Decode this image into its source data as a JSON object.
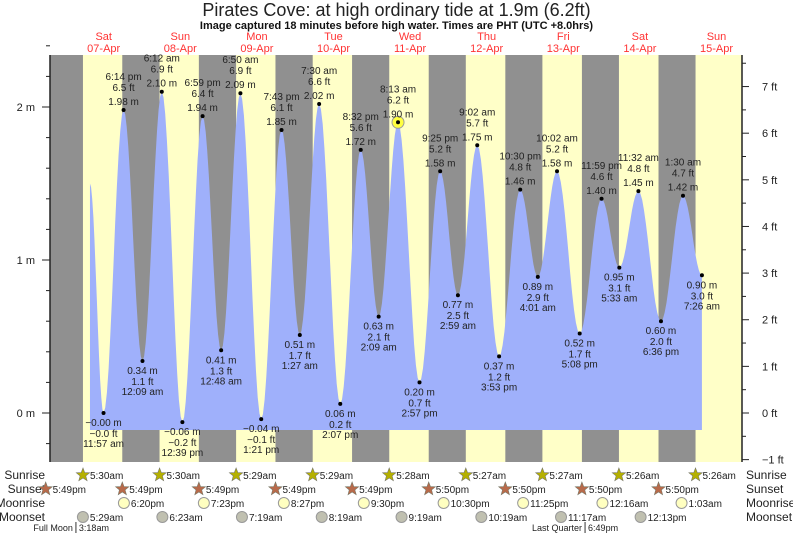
{
  "title": "Pirates Cove: at high  ordinary tide at 1.9m (6.2ft)",
  "subtitle": "Image captured 18 minutes before high water. Times are PHT (UTC +8.0hrs)",
  "colors": {
    "night": "#909090",
    "day": "#ffffc8",
    "water": "#9fb0fb",
    "day_label": "#ff3333",
    "sunrise": "#b5b000",
    "sunset": "#b86a4a",
    "moonrise": "#ffffc0",
    "moonset": "#c0c0b0"
  },
  "chart_data": {
    "type": "area",
    "title": "Pirates Cove: at high  ordinary tide at 1.9m (6.2ft)",
    "days": [
      {
        "dow": "Sat",
        "date": "07-Apr"
      },
      {
        "dow": "Sun",
        "date": "08-Apr"
      },
      {
        "dow": "Mon",
        "date": "09-Apr"
      },
      {
        "dow": "Tue",
        "date": "10-Apr"
      },
      {
        "dow": "Wed",
        "date": "11-Apr"
      },
      {
        "dow": "Thu",
        "date": "12-Apr"
      },
      {
        "dow": "Fri",
        "date": "13-Apr"
      },
      {
        "dow": "Sat",
        "date": "14-Apr"
      },
      {
        "dow": "Sun",
        "date": "15-Apr"
      }
    ],
    "y_left": {
      "unit": "m",
      "ticks": [
        "0 m",
        "1 m",
        "2 m"
      ],
      "range": [
        -0.15,
        2.6
      ]
    },
    "y_right": {
      "unit": "ft",
      "ticks": [
        "−1 ft",
        "0 ft",
        "1 ft",
        "2 ft",
        "3 ft",
        "4 ft",
        "5 ft",
        "6 ft",
        "7 ft"
      ]
    },
    "curve_start": {
      "day": 0,
      "hour": 7.7,
      "m": 1.5
    },
    "extremes": [
      {
        "day": 0,
        "time": "11:57 am",
        "m": "−0.00 m",
        "ft": "−0.0 ft",
        "v": 0.0,
        "type": "low"
      },
      {
        "day": 0,
        "time": "6:14 pm",
        "m": "1.98 m",
        "ft": "6.5 ft",
        "v": 1.98,
        "type": "high"
      },
      {
        "day": 1,
        "time": "12:09 am",
        "m": "0.34 m",
        "ft": "1.1 ft",
        "v": 0.34,
        "type": "low"
      },
      {
        "day": 1,
        "time": "6:12 am",
        "m": "2.10 m",
        "ft": "6.9 ft",
        "v": 2.1,
        "type": "high"
      },
      {
        "day": 1,
        "time": "12:39 pm",
        "m": "−0.06 m",
        "ft": "−0.2 ft",
        "v": -0.06,
        "type": "low"
      },
      {
        "day": 1,
        "time": "6:59 pm",
        "m": "1.94 m",
        "ft": "6.4 ft",
        "v": 1.94,
        "type": "high"
      },
      {
        "day": 2,
        "time": "12:48 am",
        "m": "0.41 m",
        "ft": "1.3 ft",
        "v": 0.41,
        "type": "low"
      },
      {
        "day": 2,
        "time": "6:50 am",
        "m": "2.09 m",
        "ft": "6.9 ft",
        "v": 2.09,
        "type": "high"
      },
      {
        "day": 2,
        "time": "1:21 pm",
        "m": "−0.04 m",
        "ft": "−0.1 ft",
        "v": -0.04,
        "type": "low"
      },
      {
        "day": 2,
        "time": "7:43 pm",
        "m": "1.85 m",
        "ft": "6.1 ft",
        "v": 1.85,
        "type": "high"
      },
      {
        "day": 3,
        "time": "1:27 am",
        "m": "0.51 m",
        "ft": "1.7 ft",
        "v": 0.51,
        "type": "low"
      },
      {
        "day": 3,
        "time": "7:30 am",
        "m": "2.02 m",
        "ft": "6.6 ft",
        "v": 2.02,
        "type": "high"
      },
      {
        "day": 3,
        "time": "2:07 pm",
        "m": "0.06 m",
        "ft": "0.2 ft",
        "v": 0.06,
        "type": "low"
      },
      {
        "day": 3,
        "time": "8:32 pm",
        "m": "1.72 m",
        "ft": "5.6 ft",
        "v": 1.72,
        "type": "high"
      },
      {
        "day": 4,
        "time": "2:09 am",
        "m": "0.63 m",
        "ft": "2.1 ft",
        "v": 0.63,
        "type": "low"
      },
      {
        "day": 4,
        "time": "8:13 am",
        "m": "1.90 m",
        "ft": "6.2 ft",
        "v": 1.9,
        "type": "high",
        "current": true
      },
      {
        "day": 4,
        "time": "2:57 pm",
        "m": "0.20 m",
        "ft": "0.7 ft",
        "v": 0.2,
        "type": "low"
      },
      {
        "day": 4,
        "time": "9:25 pm",
        "m": "1.58 m",
        "ft": "5.2 ft",
        "v": 1.58,
        "type": "high"
      },
      {
        "day": 5,
        "time": "2:59 am",
        "m": "0.77 m",
        "ft": "2.5 ft",
        "v": 0.77,
        "type": "low"
      },
      {
        "day": 5,
        "time": "9:02 am",
        "m": "1.75 m",
        "ft": "5.7 ft",
        "v": 1.75,
        "type": "high"
      },
      {
        "day": 5,
        "time": "3:53 pm",
        "m": "0.37 m",
        "ft": "1.2 ft",
        "v": 0.37,
        "type": "low"
      },
      {
        "day": 5,
        "time": "10:30 pm",
        "m": "1.46 m",
        "ft": "4.8 ft",
        "v": 1.46,
        "type": "high"
      },
      {
        "day": 6,
        "time": "4:01 am",
        "m": "0.89 m",
        "ft": "2.9 ft",
        "v": 0.89,
        "type": "low"
      },
      {
        "day": 6,
        "time": "10:02 am",
        "m": "1.58 m",
        "ft": "5.2 ft",
        "v": 1.58,
        "type": "high"
      },
      {
        "day": 6,
        "time": "5:08 pm",
        "m": "0.52 m",
        "ft": "1.7 ft",
        "v": 0.52,
        "type": "low"
      },
      {
        "day": 6,
        "time": "11:59 pm",
        "m": "1.40 m",
        "ft": "4.6 ft",
        "v": 1.4,
        "type": "high"
      },
      {
        "day": 7,
        "time": "5:33 am",
        "m": "0.95 m",
        "ft": "3.1 ft",
        "v": 0.95,
        "type": "low"
      },
      {
        "day": 7,
        "time": "11:32 am",
        "m": "1.45 m",
        "ft": "4.8 ft",
        "v": 1.45,
        "type": "high"
      },
      {
        "day": 7,
        "time": "6:36 pm",
        "m": "0.60 m",
        "ft": "2.0 ft",
        "v": 0.6,
        "type": "low"
      },
      {
        "day": 8,
        "time": "1:30 am",
        "m": "1.42 m",
        "ft": "4.7 ft",
        "v": 1.42,
        "type": "high"
      },
      {
        "day": 8,
        "time": "7:26 am",
        "m": "0.90 m",
        "ft": "3.0 ft",
        "v": 0.9,
        "type": "low"
      }
    ]
  },
  "astro": {
    "labels": {
      "sunrise": "Sunrise",
      "sunset": "Sunset",
      "moonrise": "Moonrise",
      "moonset": "Moonset"
    },
    "sunrise": [
      {
        "day": 0,
        "time": "5:30am"
      },
      {
        "day": 1,
        "time": "5:30am"
      },
      {
        "day": 2,
        "time": "5:29am"
      },
      {
        "day": 3,
        "time": "5:29am"
      },
      {
        "day": 4,
        "time": "5:28am"
      },
      {
        "day": 5,
        "time": "5:27am"
      },
      {
        "day": 6,
        "time": "5:27am"
      },
      {
        "day": 7,
        "time": "5:26am"
      },
      {
        "day": 8,
        "time": "5:26am"
      }
    ],
    "sunset": [
      {
        "day": -1,
        "time": "5:49pm"
      },
      {
        "day": 0,
        "time": "5:49pm"
      },
      {
        "day": 1,
        "time": "5:49pm"
      },
      {
        "day": 2,
        "time": "5:49pm"
      },
      {
        "day": 3,
        "time": "5:49pm"
      },
      {
        "day": 4,
        "time": "5:50pm"
      },
      {
        "day": 5,
        "time": "5:50pm"
      },
      {
        "day": 6,
        "time": "5:50pm"
      },
      {
        "day": 7,
        "time": "5:50pm"
      }
    ],
    "moonrise": [
      {
        "day": 0,
        "time": "6:20pm"
      },
      {
        "day": 1,
        "time": "7:23pm"
      },
      {
        "day": 2,
        "time": "8:27pm"
      },
      {
        "day": 3,
        "time": "9:30pm"
      },
      {
        "day": 4,
        "time": "10:30pm"
      },
      {
        "day": 5,
        "time": "11:25pm"
      },
      {
        "day": 7,
        "time": "12:16am"
      },
      {
        "day": 8,
        "time": "1:03am"
      }
    ],
    "moonset": [
      {
        "day": 0,
        "time": "5:29am"
      },
      {
        "day": 1,
        "time": "6:23am"
      },
      {
        "day": 2,
        "time": "7:19am"
      },
      {
        "day": 3,
        "time": "8:19am"
      },
      {
        "day": 4,
        "time": "9:19am"
      },
      {
        "day": 5,
        "time": "10:19am"
      },
      {
        "day": 6,
        "time": "11:17am"
      },
      {
        "day": 7,
        "time": "12:13pm"
      }
    ],
    "phases": [
      {
        "day": 0,
        "name": "Full Moon",
        "time": "3:18am"
      },
      {
        "day": 6,
        "name": "Last Quarter",
        "time": "6:49pm"
      }
    ]
  }
}
